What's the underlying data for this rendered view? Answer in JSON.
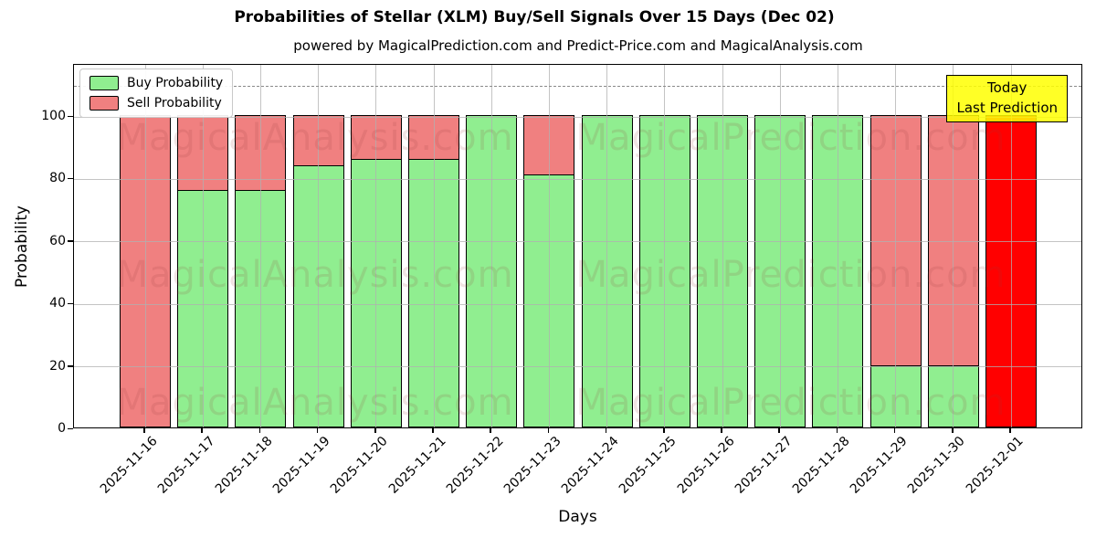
{
  "title": "Probabilities of Stellar (XLM) Buy/Sell Signals Over 15 Days (Dec 02)",
  "subtitle": "powered by MagicalPrediction.com and Predict-Price.com and MagicalAnalysis.com",
  "legend": [
    {
      "label": "Buy Probability",
      "color": "#90ee90"
    },
    {
      "label": "Sell Probability",
      "color": "#f08080"
    }
  ],
  "annotation_box": {
    "lines": [
      "Today",
      "Last Prediction"
    ],
    "bg": "#ffff00"
  },
  "watermarks": {
    "left": "MagicalAnalysis.com",
    "right": "MagicalPrediction.com"
  },
  "colors": {
    "buy": "#90ee90",
    "sell": "#f08080",
    "last_bar": "#ff0000",
    "bar_edge": "#000000",
    "grid": "#b0b0b0",
    "dashed_line": "#8a8a8a"
  },
  "chart_data": {
    "type": "bar",
    "stacked": true,
    "title": "Probabilities of Stellar (XLM) Buy/Sell Signals Over 15 Days (Dec 02)",
    "xlabel": "Days",
    "ylabel": "Probability",
    "ylim": [
      0,
      116.5
    ],
    "yticks": [
      0,
      20,
      40,
      60,
      80,
      100
    ],
    "grid": true,
    "dashed_hline_y": 110,
    "legend_position": "upper left",
    "categories": [
      "2025-11-16",
      "2025-11-17",
      "2025-11-18",
      "2025-11-19",
      "2025-11-20",
      "2025-11-21",
      "2025-11-22",
      "2025-11-23",
      "2025-11-24",
      "2025-11-25",
      "2025-11-26",
      "2025-11-27",
      "2025-11-28",
      "2025-11-29",
      "2025-11-30",
      "2025-12-01"
    ],
    "series": [
      {
        "name": "Buy Probability",
        "color": "#90ee90",
        "values": [
          0,
          76,
          76,
          84,
          86,
          86,
          100,
          81,
          100,
          100,
          100,
          100,
          100,
          20,
          20,
          0
        ]
      },
      {
        "name": "Sell Probability",
        "color": "#f08080",
        "values": [
          100,
          24,
          24,
          16,
          14,
          14,
          0,
          19,
          0,
          0,
          0,
          0,
          0,
          80,
          80,
          100
        ]
      }
    ],
    "last_bar_color": "#ff0000",
    "last_bar_note": "Today / Last Prediction"
  }
}
